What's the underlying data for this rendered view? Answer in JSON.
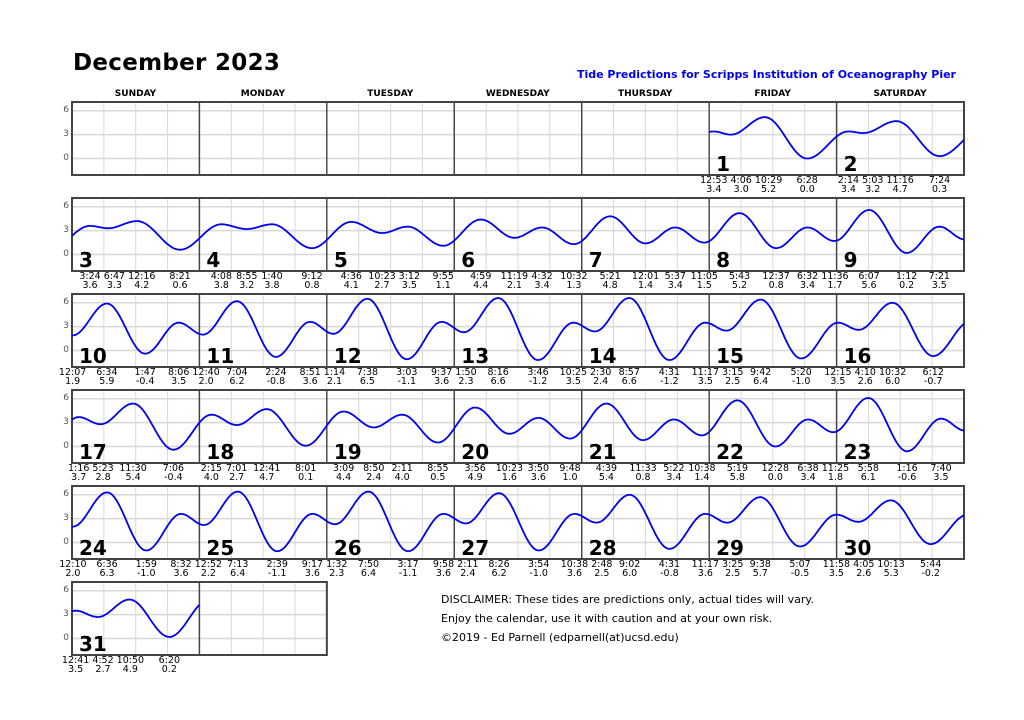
{
  "header": {
    "title": "December 2023",
    "subtitle": "Tide Predictions for Scripps Institution of Oceanography Pier"
  },
  "weekdays": [
    "SUNDAY",
    "MONDAY",
    "TUESDAY",
    "WEDNESDAY",
    "THURSDAY",
    "FRIDAY",
    "SATURDAY"
  ],
  "y_axis": {
    "ticks": [
      "6",
      "3",
      "0"
    ],
    "range_ft": [
      -2.1,
      7.1
    ]
  },
  "colors": {
    "curve": "#0000ee",
    "subtitle": "#0000ee",
    "grid": "#d8d8d8",
    "border": "#444444"
  },
  "first_weekday_index": 5,
  "days": [
    {
      "day": "1",
      "tides": [
        {
          "time": "12:53",
          "height": "3.4"
        },
        {
          "time": "4:06",
          "height": "3.0"
        },
        {
          "time": "10:29",
          "height": "5.2"
        },
        {
          "time": "6:28",
          "height": "0.0"
        }
      ]
    },
    {
      "day": "2",
      "tides": [
        {
          "time": "2:14",
          "height": "3.4"
        },
        {
          "time": "5:03",
          "height": "3.2"
        },
        {
          "time": "11:16",
          "height": "4.7"
        },
        {
          "time": "7:24",
          "height": "0.3"
        }
      ]
    },
    {
      "day": "3",
      "tides": [
        {
          "time": "3:24",
          "height": "3.6"
        },
        {
          "time": "6:47",
          "height": "3.3"
        },
        {
          "time": "12:16",
          "height": "4.2"
        },
        {
          "time": "8:21",
          "height": "0.6"
        }
      ]
    },
    {
      "day": "4",
      "tides": [
        {
          "time": "4:08",
          "height": "3.8"
        },
        {
          "time": "8:55",
          "height": "3.2"
        },
        {
          "time": "1:40",
          "height": "3.8"
        },
        {
          "time": "9:12",
          "height": "0.8"
        }
      ]
    },
    {
      "day": "5",
      "tides": [
        {
          "time": "4:36",
          "height": "4.1"
        },
        {
          "time": "10:23",
          "height": "2.7"
        },
        {
          "time": "3:12",
          "height": "3.5"
        },
        {
          "time": "9:55",
          "height": "1.1"
        }
      ]
    },
    {
      "day": "6",
      "tides": [
        {
          "time": "4:59",
          "height": "4.4"
        },
        {
          "time": "11:19",
          "height": "2.1"
        },
        {
          "time": "4:32",
          "height": "3.4"
        },
        {
          "time": "10:32",
          "height": "1.3"
        }
      ]
    },
    {
      "day": "7",
      "tides": [
        {
          "time": "5:21",
          "height": "4.8"
        },
        {
          "time": "12:01",
          "height": "1.4"
        },
        {
          "time": "5:37",
          "height": "3.4"
        },
        {
          "time": "11:05",
          "height": "1.5"
        }
      ]
    },
    {
      "day": "8",
      "tides": [
        {
          "time": "5:43",
          "height": "5.2"
        },
        {
          "time": "12:37",
          "height": "0.8"
        },
        {
          "time": "6:32",
          "height": "3.4"
        },
        {
          "time": "11:36",
          "height": "1.7"
        }
      ]
    },
    {
      "day": "9",
      "tides": [
        {
          "time": "6:07",
          "height": "5.6"
        },
        {
          "time": "1:12",
          "height": "0.2"
        },
        {
          "time": "7:21",
          "height": "3.5"
        }
      ]
    },
    {
      "day": "10",
      "tides": [
        {
          "time": "12:07",
          "height": "1.9"
        },
        {
          "time": "6:34",
          "height": "5.9"
        },
        {
          "time": "1:47",
          "height": "-0.4"
        },
        {
          "time": "8:06",
          "height": "3.5"
        }
      ]
    },
    {
      "day": "11",
      "tides": [
        {
          "time": "12:40",
          "height": "2.0"
        },
        {
          "time": "7:04",
          "height": "6.2"
        },
        {
          "time": "2:24",
          "height": "-0.8"
        },
        {
          "time": "8:51",
          "height": "3.6"
        }
      ]
    },
    {
      "day": "12",
      "tides": [
        {
          "time": "1:14",
          "height": "2.1"
        },
        {
          "time": "7:38",
          "height": "6.5"
        },
        {
          "time": "3:03",
          "height": "-1.1"
        },
        {
          "time": "9:37",
          "height": "3.6"
        }
      ]
    },
    {
      "day": "13",
      "tides": [
        {
          "time": "1:50",
          "height": "2.3"
        },
        {
          "time": "8:16",
          "height": "6.6"
        },
        {
          "time": "3:46",
          "height": "-1.2"
        },
        {
          "time": "10:25",
          "height": "3.5"
        }
      ]
    },
    {
      "day": "14",
      "tides": [
        {
          "time": "2:30",
          "height": "2.4"
        },
        {
          "time": "8:57",
          "height": "6.6"
        },
        {
          "time": "4:31",
          "height": "-1.2"
        },
        {
          "time": "11:17",
          "height": "3.5"
        }
      ]
    },
    {
      "day": "15",
      "tides": [
        {
          "time": "3:15",
          "height": "2.5"
        },
        {
          "time": "9:42",
          "height": "6.4"
        },
        {
          "time": "5:20",
          "height": "-1.0"
        }
      ]
    },
    {
      "day": "16",
      "tides": [
        {
          "time": "12:15",
          "height": "3.5"
        },
        {
          "time": "4:10",
          "height": "2.6"
        },
        {
          "time": "10:32",
          "height": "6.0"
        },
        {
          "time": "6:12",
          "height": "-0.7"
        }
      ]
    },
    {
      "day": "17",
      "tides": [
        {
          "time": "1:16",
          "height": "3.7"
        },
        {
          "time": "5:23",
          "height": "2.8"
        },
        {
          "time": "11:30",
          "height": "5.4"
        },
        {
          "time": "7:06",
          "height": "-0.4"
        }
      ]
    },
    {
      "day": "18",
      "tides": [
        {
          "time": "2:15",
          "height": "4.0"
        },
        {
          "time": "7:01",
          "height": "2.7"
        },
        {
          "time": "12:41",
          "height": "4.7"
        },
        {
          "time": "8:01",
          "height": "0.1"
        }
      ]
    },
    {
      "day": "19",
      "tides": [
        {
          "time": "3:09",
          "height": "4.4"
        },
        {
          "time": "8:50",
          "height": "2.4"
        },
        {
          "time": "2:11",
          "height": "4.0"
        },
        {
          "time": "8:55",
          "height": "0.5"
        }
      ]
    },
    {
      "day": "20",
      "tides": [
        {
          "time": "3:56",
          "height": "4.9"
        },
        {
          "time": "10:23",
          "height": "1.6"
        },
        {
          "time": "3:50",
          "height": "3.6"
        },
        {
          "time": "9:48",
          "height": "1.0"
        }
      ]
    },
    {
      "day": "21",
      "tides": [
        {
          "time": "4:39",
          "height": "5.4"
        },
        {
          "time": "11:33",
          "height": "0.8"
        },
        {
          "time": "5:22",
          "height": "3.4"
        },
        {
          "time": "10:38",
          "height": "1.4"
        }
      ]
    },
    {
      "day": "22",
      "tides": [
        {
          "time": "5:19",
          "height": "5.8"
        },
        {
          "time": "12:28",
          "height": "0.0"
        },
        {
          "time": "6:38",
          "height": "3.4"
        },
        {
          "time": "11:25",
          "height": "1.8"
        }
      ]
    },
    {
      "day": "23",
      "tides": [
        {
          "time": "5:58",
          "height": "6.1"
        },
        {
          "time": "1:16",
          "height": "-0.6"
        },
        {
          "time": "7:40",
          "height": "3.5"
        }
      ]
    },
    {
      "day": "24",
      "tides": [
        {
          "time": "12:10",
          "height": "2.0"
        },
        {
          "time": "6:36",
          "height": "6.3"
        },
        {
          "time": "1:59",
          "height": "-1.0"
        },
        {
          "time": "8:32",
          "height": "3.6"
        }
      ]
    },
    {
      "day": "25",
      "tides": [
        {
          "time": "12:52",
          "height": "2.2"
        },
        {
          "time": "7:13",
          "height": "6.4"
        },
        {
          "time": "2:39",
          "height": "-1.1"
        },
        {
          "time": "9:17",
          "height": "3.6"
        }
      ]
    },
    {
      "day": "26",
      "tides": [
        {
          "time": "1:32",
          "height": "2.3"
        },
        {
          "time": "7:50",
          "height": "6.4"
        },
        {
          "time": "3:17",
          "height": "-1.1"
        },
        {
          "time": "9:58",
          "height": "3.6"
        }
      ]
    },
    {
      "day": "27",
      "tides": [
        {
          "time": "2:11",
          "height": "2.4"
        },
        {
          "time": "8:26",
          "height": "6.2"
        },
        {
          "time": "3:54",
          "height": "-1.0"
        },
        {
          "time": "10:38",
          "height": "3.6"
        }
      ]
    },
    {
      "day": "28",
      "tides": [
        {
          "time": "2:48",
          "height": "2.5"
        },
        {
          "time": "9:02",
          "height": "6.0"
        },
        {
          "time": "4:31",
          "height": "-0.8"
        },
        {
          "time": "11:17",
          "height": "3.6"
        }
      ]
    },
    {
      "day": "29",
      "tides": [
        {
          "time": "3:25",
          "height": "2.5"
        },
        {
          "time": "9:38",
          "height": "5.7"
        },
        {
          "time": "5:07",
          "height": "-0.5"
        },
        {
          "time": "11:58",
          "height": "3.5"
        }
      ]
    },
    {
      "day": "30",
      "tides": [
        {
          "time": "4:05",
          "height": "2.6"
        },
        {
          "time": "10:13",
          "height": "5.3"
        },
        {
          "time": "5:44",
          "height": "-0.2"
        }
      ]
    },
    {
      "day": "31",
      "tides": [
        {
          "time": "12:41",
          "height": "3.5"
        },
        {
          "time": "4:52",
          "height": "2.7"
        },
        {
          "time": "10:50",
          "height": "4.9"
        },
        {
          "time": "6:20",
          "height": "0.2"
        }
      ]
    }
  ],
  "disclaimer": [
    "DISCLAIMER: These tides are predictions only, actual tides will vary.",
    "Enjoy the calendar, use it with caution and at your own risk.",
    "©2019 - Ed Parnell (edparnell(at)ucsd.edu)"
  ]
}
